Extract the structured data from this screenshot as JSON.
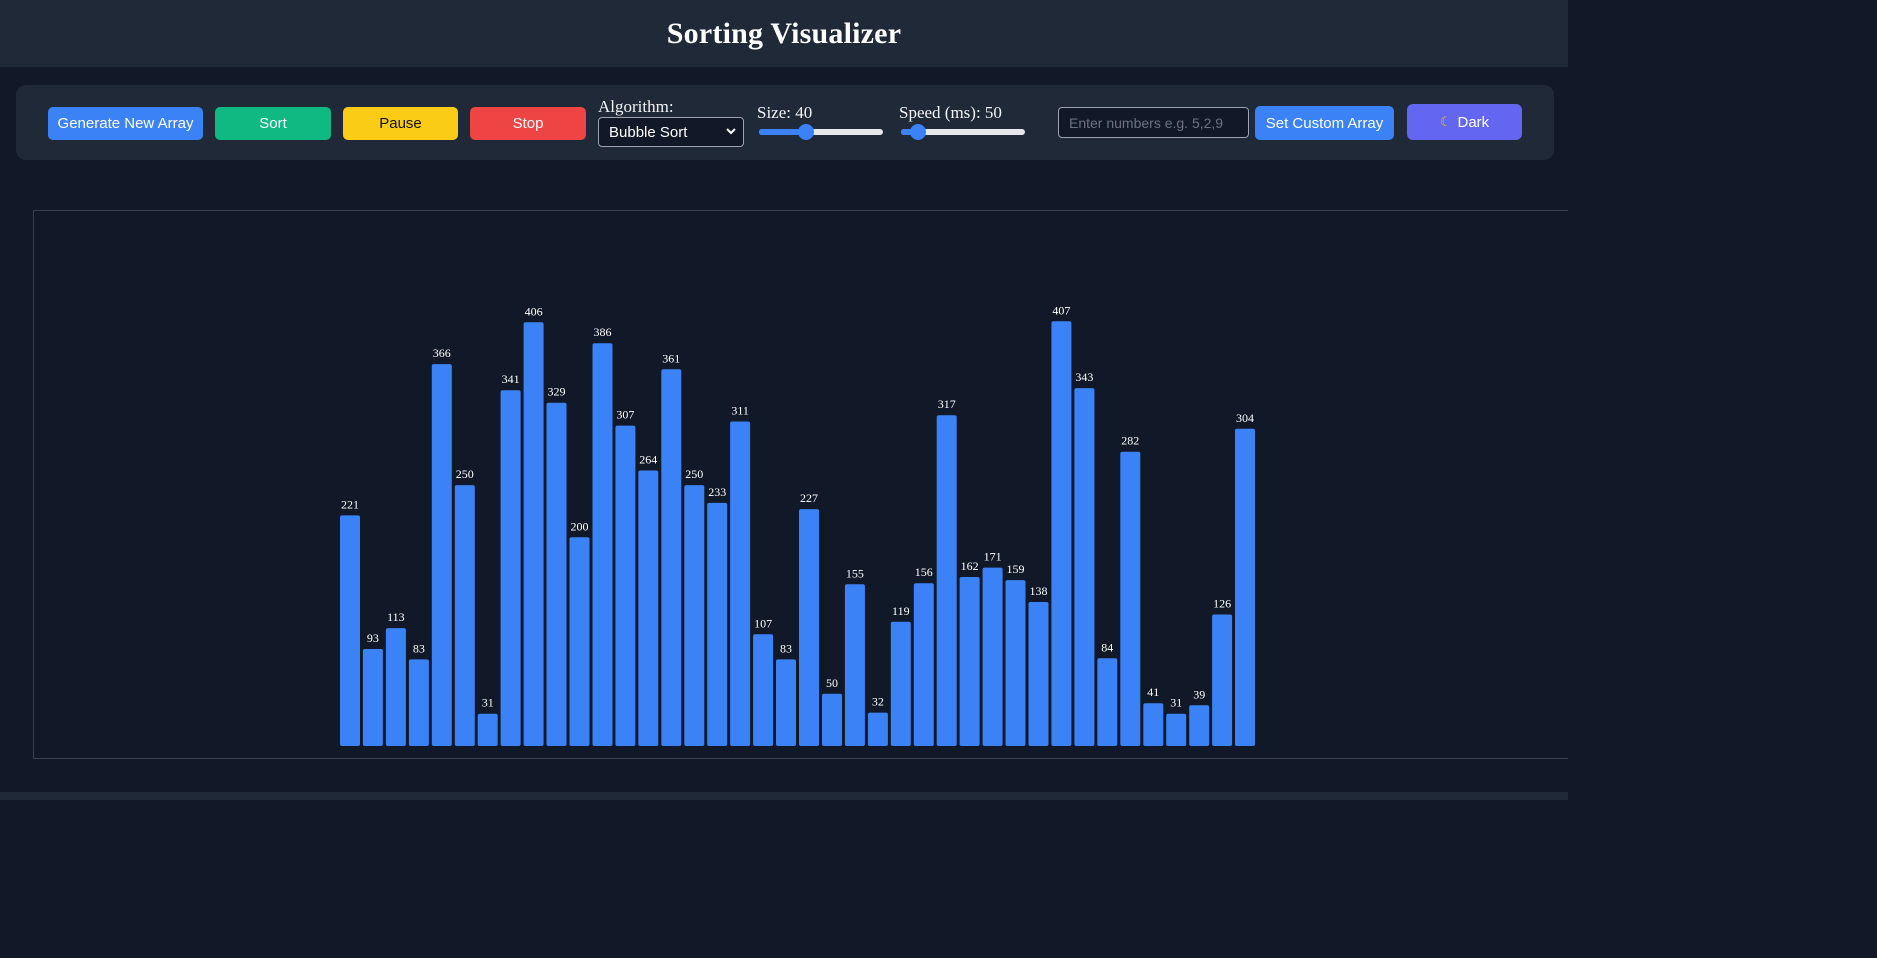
{
  "header": {
    "title": "Sorting Visualizer"
  },
  "controls": {
    "generate_label": "Generate New Array",
    "sort_label": "Sort",
    "pause_label": "Pause",
    "stop_label": "Stop",
    "algorithm_label": "Algorithm:",
    "algorithm_selected": "Bubble Sort",
    "size_label": "Size: 40",
    "size_value": 40,
    "size_fraction": 0.38,
    "speed_label": "Speed (ms): 50",
    "speed_value": 50,
    "speed_fraction": 0.14,
    "custom_input_placeholder": "Enter numbers e.g. 5,2,9",
    "custom_input_value": "",
    "set_custom_label": "Set Custom Array",
    "theme_label": "Dark",
    "theme_icon": "moon-icon"
  },
  "colors": {
    "bar": "#3b82f6",
    "generate": "#3b82f6",
    "sort": "#10b981",
    "pause": "#facc15",
    "stop": "#ef4444",
    "theme": "#6366f1"
  },
  "chart_data": {
    "type": "bar",
    "title": "",
    "xlabel": "",
    "ylabel": "",
    "values": [
      221,
      93,
      113,
      83,
      366,
      250,
      31,
      341,
      406,
      329,
      200,
      386,
      307,
      264,
      361,
      250,
      233,
      311,
      107,
      83,
      227,
      50,
      155,
      32,
      119,
      156,
      317,
      162,
      171,
      159,
      138,
      407,
      343,
      84,
      282,
      41,
      31,
      39,
      126,
      304
    ],
    "show_value_labels": true,
    "grid": false,
    "legend": "none"
  }
}
